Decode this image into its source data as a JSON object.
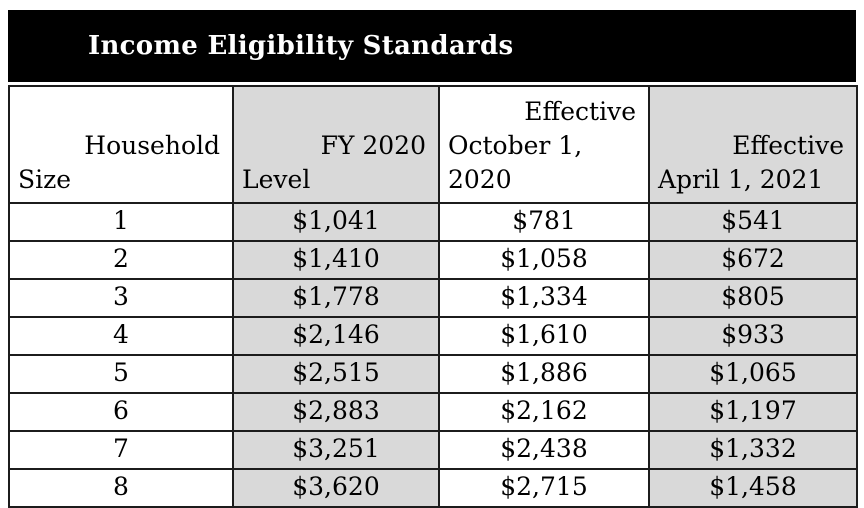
{
  "title": "Income Eligibility Standards",
  "colors": {
    "title_bar_bg": "#000000",
    "title_bar_text": "#ffffff",
    "shaded_column_bg": "#d9d9d9",
    "border": "#1c1c1c"
  },
  "table": {
    "columns": [
      {
        "label": "Household Size",
        "lines": [
          "Household",
          "Size"
        ]
      },
      {
        "label": "FY 2020 Level",
        "lines": [
          "FY 2020",
          "Level"
        ]
      },
      {
        "label": "Effective October 1, 2020",
        "lines": [
          "Effective",
          "October 1,",
          "2020"
        ]
      },
      {
        "label": "Effective April 1, 2021",
        "lines": [
          "Effective",
          "April 1, 2021"
        ]
      }
    ],
    "rows": [
      {
        "cells": [
          "1",
          "$1,041",
          "$781",
          "$541"
        ]
      },
      {
        "cells": [
          "2",
          "$1,410",
          "$1,058",
          "$672"
        ]
      },
      {
        "cells": [
          "3",
          "$1,778",
          "$1,334",
          "$805"
        ]
      },
      {
        "cells": [
          "4",
          "$2,146",
          "$1,610",
          "$933"
        ]
      },
      {
        "cells": [
          "5",
          "$2,515",
          "$1,886",
          "$1,065"
        ]
      },
      {
        "cells": [
          "6",
          "$2,883",
          "$2,162",
          "$1,197"
        ]
      },
      {
        "cells": [
          "7",
          "$3,251",
          "$2,438",
          "$1,332"
        ]
      },
      {
        "cells": [
          "8",
          "$3,620",
          "$2,715",
          "$1,458"
        ]
      }
    ]
  }
}
